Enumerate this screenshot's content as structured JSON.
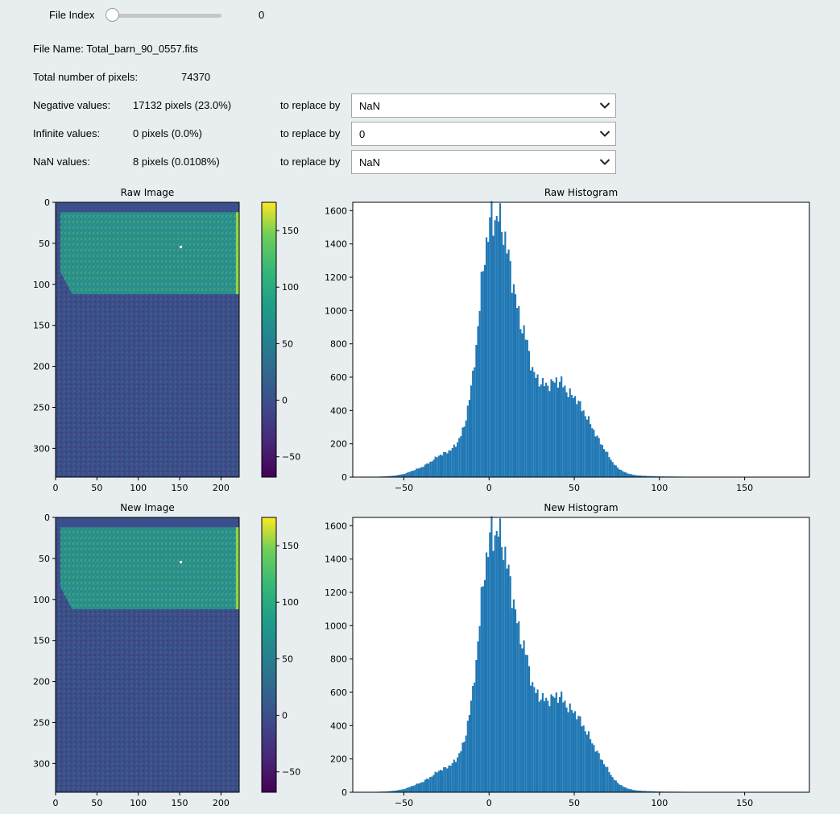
{
  "slider": {
    "label": "File Index",
    "value": "0",
    "fraction": 0.0
  },
  "file": {
    "label": "File Name:",
    "name": "Total_barn_90_0557.fits"
  },
  "total": {
    "label": "Total number of pixels:",
    "value": "74370"
  },
  "rows": [
    {
      "label": "Negative values:",
      "count": "17132 pixels (23.0%)",
      "replace_label": "to replace by",
      "selected": "NaN"
    },
    {
      "label": "Infinite values:",
      "count": "0 pixels (0.0%)",
      "replace_label": "to replace by",
      "selected": "0"
    },
    {
      "label": "NaN values:",
      "count": "8 pixels (0.0108%)",
      "replace_label": "to replace by",
      "selected": "NaN"
    }
  ],
  "icons": {
    "dropdown": "chevron-down-icon"
  },
  "colors": {
    "bar": "#1f77b4",
    "background": "#e8eef0"
  },
  "chart_data": [
    {
      "type": "heatmap",
      "title": "Raw Image",
      "xticks": [
        0,
        50,
        100,
        150,
        200
      ],
      "yticks": [
        0,
        50,
        100,
        150,
        200,
        250,
        300
      ],
      "xlim": [
        0,
        222
      ],
      "ylim": [
        0,
        335
      ],
      "colorbar_ticks": [
        -50,
        0,
        50,
        100,
        150
      ],
      "colorbar_range": [
        -68,
        175
      ],
      "colormap": "viridis"
    },
    {
      "type": "bar",
      "title": "Raw Histogram",
      "xticks": [
        -50,
        0,
        50,
        100,
        150
      ],
      "yticks": [
        0,
        200,
        400,
        600,
        800,
        1000,
        1200,
        1400,
        1600
      ],
      "xlim": [
        -80,
        188
      ],
      "ylim": [
        0,
        1650
      ],
      "x": [
        -70,
        -65,
        -60,
        -55,
        -50,
        -45,
        -40,
        -35,
        -30,
        -25,
        -20,
        -15,
        -10,
        -7,
        -5,
        -3,
        -1,
        1,
        3,
        5,
        7,
        9,
        11,
        13,
        15,
        17,
        19,
        21,
        23,
        25,
        27,
        30,
        33,
        36,
        39,
        42,
        45,
        48,
        51,
        54,
        57,
        60,
        63,
        66,
        69,
        72,
        75,
        80,
        85,
        90,
        95,
        100,
        110,
        120,
        130,
        140,
        150,
        160,
        170
      ],
      "values": [
        1,
        3,
        5,
        10,
        20,
        40,
        60,
        90,
        130,
        150,
        190,
        300,
        600,
        900,
        1150,
        1350,
        1450,
        1580,
        1540,
        1560,
        1520,
        1420,
        1320,
        1200,
        1080,
        970,
        900,
        840,
        750,
        640,
        600,
        570,
        550,
        560,
        580,
        570,
        520,
        490,
        470,
        410,
        360,
        300,
        240,
        190,
        140,
        90,
        55,
        25,
        12,
        8,
        6,
        4,
        3,
        2,
        1,
        1,
        1,
        0,
        0
      ]
    },
    {
      "type": "heatmap",
      "title": "New Image",
      "xticks": [
        0,
        50,
        100,
        150,
        200
      ],
      "yticks": [
        0,
        50,
        100,
        150,
        200,
        250,
        300
      ],
      "xlim": [
        0,
        222
      ],
      "ylim": [
        0,
        335
      ],
      "colorbar_ticks": [
        -50,
        0,
        50,
        100,
        150
      ],
      "colorbar_range": [
        -68,
        175
      ],
      "colormap": "viridis"
    },
    {
      "type": "bar",
      "title": "New Histogram",
      "xticks": [
        -50,
        0,
        50,
        100,
        150
      ],
      "yticks": [
        0,
        200,
        400,
        600,
        800,
        1000,
        1200,
        1400,
        1600
      ],
      "xlim": [
        -80,
        188
      ],
      "ylim": [
        0,
        1650
      ],
      "x": [
        -70,
        -65,
        -60,
        -55,
        -50,
        -45,
        -40,
        -35,
        -30,
        -25,
        -20,
        -15,
        -10,
        -7,
        -5,
        -3,
        -1,
        1,
        3,
        5,
        7,
        9,
        11,
        13,
        15,
        17,
        19,
        21,
        23,
        25,
        27,
        30,
        33,
        36,
        39,
        42,
        45,
        48,
        51,
        54,
        57,
        60,
        63,
        66,
        69,
        72,
        75,
        80,
        85,
        90,
        95,
        100,
        110,
        120,
        130,
        140,
        150,
        160,
        170
      ],
      "values": [
        1,
        3,
        5,
        10,
        20,
        40,
        60,
        90,
        130,
        150,
        190,
        300,
        600,
        900,
        1150,
        1350,
        1450,
        1580,
        1540,
        1560,
        1520,
        1420,
        1320,
        1200,
        1080,
        970,
        900,
        840,
        750,
        640,
        600,
        570,
        550,
        560,
        580,
        570,
        520,
        490,
        470,
        410,
        360,
        300,
        240,
        190,
        140,
        90,
        55,
        25,
        12,
        8,
        6,
        4,
        3,
        2,
        1,
        1,
        1,
        0,
        0
      ]
    }
  ]
}
